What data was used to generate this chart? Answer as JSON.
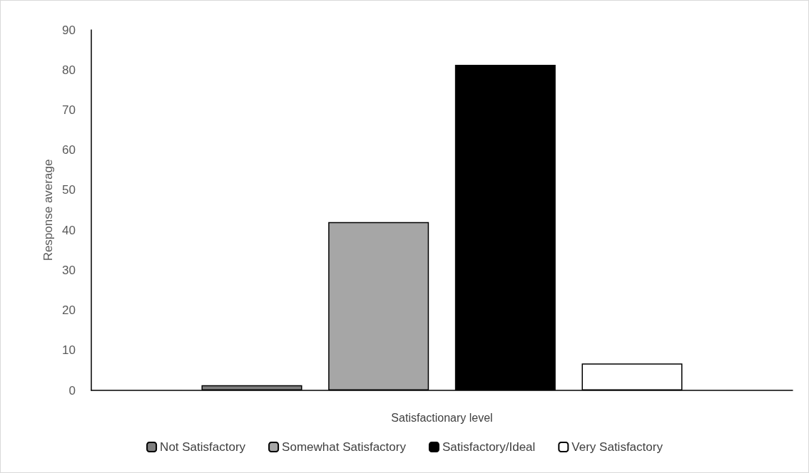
{
  "chart_data": {
    "type": "bar",
    "xlabel": "Satisfactionary level",
    "ylabel": "Response average",
    "categories": [
      null
    ],
    "series": [
      {
        "name": "Not Satisfactory",
        "color": "#7f7f7f",
        "values": [
          1.3
        ]
      },
      {
        "name": "Somewhat Satisfactory",
        "color": "#a6a6a6",
        "values": [
          42
        ]
      },
      {
        "name": "Satisfactory/Ideal",
        "color": "#000000",
        "values": [
          81.3
        ]
      },
      {
        "name": "Very Satisfactory",
        "color": "#ffffff",
        "values": [
          6.7
        ]
      }
    ],
    "ylim": [
      0,
      90
    ],
    "yticks": [
      0,
      10,
      20,
      30,
      40,
      50,
      60,
      70,
      80,
      90
    ],
    "grid": false,
    "legend": "bottom"
  }
}
